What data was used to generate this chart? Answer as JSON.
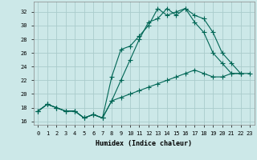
{
  "title": "",
  "xlabel": "Humidex (Indice chaleur)",
  "bg_color": "#cce8e8",
  "grid_color": "#aacccc",
  "line_color": "#006655",
  "xlim": [
    -0.5,
    23.5
  ],
  "ylim": [
    15.5,
    33.5
  ],
  "yticks": [
    16,
    18,
    20,
    22,
    24,
    26,
    28,
    30,
    32
  ],
  "xticks": [
    0,
    1,
    2,
    3,
    4,
    5,
    6,
    7,
    8,
    9,
    10,
    11,
    12,
    13,
    14,
    15,
    16,
    17,
    18,
    19,
    20,
    21,
    22,
    23
  ],
  "line1_x": [
    0,
    1,
    2,
    3,
    4,
    5,
    6,
    7,
    8,
    9,
    10,
    11,
    12,
    13,
    14,
    15,
    16,
    17,
    18,
    19,
    20,
    21,
    22
  ],
  "line1_y": [
    17.5,
    18.5,
    18.0,
    17.5,
    17.5,
    16.5,
    17.0,
    16.5,
    19.0,
    22.0,
    25.0,
    28.0,
    30.5,
    31.0,
    32.5,
    31.5,
    32.5,
    31.5,
    31.0,
    29.0,
    26.0,
    24.5,
    23.0
  ],
  "line2_x": [
    0,
    1,
    2,
    3,
    4,
    5,
    6,
    7,
    8,
    9,
    10,
    11,
    12,
    13,
    14,
    15,
    16,
    17,
    18,
    19,
    20,
    21,
    22
  ],
  "line2_y": [
    17.5,
    18.5,
    18.0,
    17.5,
    17.5,
    16.5,
    17.0,
    16.5,
    22.5,
    26.5,
    27.0,
    28.5,
    30.0,
    32.5,
    31.5,
    32.0,
    32.5,
    30.5,
    29.0,
    26.0,
    24.5,
    23.0,
    23.0
  ],
  "line3_x": [
    0,
    1,
    2,
    3,
    4,
    5,
    6,
    7,
    8,
    9,
    10,
    11,
    12,
    13,
    14,
    15,
    16,
    17,
    18,
    19,
    20,
    21,
    22,
    23
  ],
  "line3_y": [
    17.5,
    18.5,
    18.0,
    17.5,
    17.5,
    16.5,
    17.0,
    16.5,
    19.0,
    19.5,
    20.0,
    20.5,
    21.0,
    21.5,
    22.0,
    22.5,
    23.0,
    23.5,
    23.0,
    22.5,
    22.5,
    23.0,
    23.0,
    23.0
  ],
  "xlabel_fontsize": 6,
  "tick_fontsize": 5,
  "marker_size": 2.2,
  "linewidth": 0.8
}
